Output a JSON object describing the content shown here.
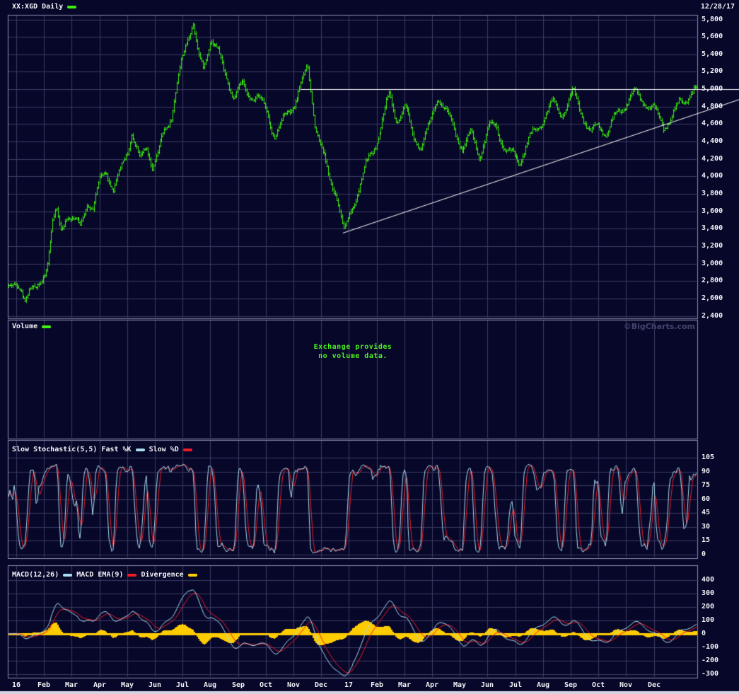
{
  "header": {
    "title": "XX:XGD Daily",
    "date": "12/28/17"
  },
  "watermark": "©BigCharts.com",
  "colors": {
    "background": "#07072a",
    "grid": "#3b3b64",
    "border": "#8b8bac",
    "text": "#f2f2f6",
    "price_green": "#3cf00c",
    "fast_k_blue": "#a8dcec",
    "slow_d_red": "#ee1c24",
    "macd_blue": "#a8dcec",
    "macd_ema_red": "#ee1c24",
    "divergence_yellow": "#ffcc00",
    "trendline_white": "#ffffff",
    "message_green": "#4ef01e",
    "watermark_gray": "#44446c",
    "bottom_strip": "#d4d4e4"
  },
  "panels": {
    "price": {
      "y_ticks": [
        "5,800",
        "5,600",
        "5,400",
        "5,200",
        "5,000",
        "4,800",
        "4,600",
        "4,400",
        "4,200",
        "4,000",
        "3,800",
        "3,600",
        "3,400",
        "3,200",
        "3,000",
        "2,800",
        "2,600",
        "2,400"
      ]
    },
    "volume": {
      "label": "Volume",
      "message_line1": "Exchange provides",
      "message_line2": "no volume data."
    },
    "stochastic": {
      "label": "Slow Stochastic(5,5)",
      "legend": [
        {
          "name": "Fast %K",
          "color": "fast_k_blue"
        },
        {
          "name": "Slow %D",
          "color": "slow_d_red"
        }
      ],
      "y_ticks": [
        "105",
        "90",
        "75",
        "60",
        "45",
        "30",
        "15",
        "0"
      ]
    },
    "macd": {
      "legend": [
        {
          "name": "MACD(12,26)",
          "color": "macd_blue"
        },
        {
          "name": "MACD EMA(9)",
          "color": "macd_ema_red"
        },
        {
          "name": "Divergence",
          "color": "divergence_yellow"
        }
      ],
      "y_ticks": [
        "400",
        "300",
        "200",
        "100",
        "0",
        "-100",
        "-200",
        "-300"
      ]
    }
  },
  "x_axis": {
    "months": [
      "16",
      "Feb",
      "Mar",
      "Apr",
      "May",
      "Jun",
      "Jul",
      "Aug",
      "Sep",
      "Oct",
      "Nov",
      "Dec",
      "17",
      "Feb",
      "Mar",
      "Apr",
      "May",
      "Jun",
      "Jul",
      "Aug",
      "Sep",
      "Oct",
      "Nov",
      "Dec"
    ]
  },
  "chart_data": [
    {
      "type": "ohlc",
      "title": "XX:XGD Daily price",
      "last_date": "12/28/17",
      "ylim": [
        2400,
        5800
      ],
      "x_unit": "months since Jan 2016 gridline",
      "anchors": {
        "x": [
          -0.28,
          0.1,
          0.3,
          0.5,
          0.7,
          0.9,
          1.05,
          1.3,
          1.45,
          1.6,
          1.85,
          2.0,
          2.3,
          2.55,
          2.75,
          3.0,
          3.25,
          3.5,
          3.75,
          4.0,
          4.15,
          4.45,
          4.7,
          4.9,
          5.1,
          5.35,
          5.6,
          5.8,
          6.0,
          6.38,
          6.6,
          6.75,
          7.0,
          7.25,
          7.5,
          7.8,
          8.1,
          8.4,
          8.7,
          9.0,
          9.3,
          9.6,
          9.9,
          10.15,
          10.5,
          10.75,
          11.0,
          11.3,
          11.55,
          11.82,
          12.05,
          12.3,
          12.6,
          12.85,
          13.1,
          13.45,
          13.7,
          14.0,
          14.3,
          14.6,
          14.9,
          15.2,
          15.5,
          15.8,
          16.1,
          16.4,
          16.7,
          17.0,
          17.3,
          17.6,
          17.9,
          18.15,
          18.45,
          18.75,
          19.05,
          19.35,
          19.65,
          20.1,
          20.4,
          20.7,
          21.0,
          21.3,
          21.6,
          22.0,
          22.3,
          22.6,
          23.0,
          23.35,
          23.65,
          23.9,
          24.2,
          24.54
        ],
        "price": [
          2760,
          2700,
          2630,
          2760,
          2720,
          2800,
          2950,
          3480,
          3580,
          3350,
          3560,
          3500,
          3370,
          3700,
          3620,
          3960,
          4100,
          3880,
          4090,
          4330,
          4520,
          4170,
          4310,
          4080,
          4220,
          4500,
          4720,
          5100,
          5400,
          5780,
          5360,
          5230,
          5580,
          5480,
          5150,
          4900,
          5030,
          4900,
          4980,
          4750,
          4520,
          4660,
          4760,
          4960,
          5220,
          4620,
          4300,
          3950,
          3820,
          3380,
          3620,
          3850,
          4130,
          4280,
          4500,
          4900,
          4620,
          4780,
          4480,
          4390,
          4620,
          4970,
          4750,
          4500,
          4290,
          4460,
          4210,
          4550,
          4610,
          4350,
          4270,
          4190,
          4410,
          4510,
          4660,
          4810,
          4710,
          4980,
          4760,
          4530,
          4610,
          4500,
          4660,
          4810,
          4930,
          4860,
          4790,
          4620,
          4710,
          4860,
          4910,
          4970
        ]
      },
      "trendlines": [
        {
          "kind": "horizontal-resistance",
          "price": 5000,
          "x_start": 10.25,
          "x_end": 26.3
        },
        {
          "kind": "ascending-support",
          "x_start": 11.78,
          "price_start": 3350,
          "x_end": 26.1,
          "price_end": 4880
        }
      ]
    },
    {
      "type": "line",
      "title": "Slow Stochastic(5,5)",
      "series_names": [
        "Fast %K",
        "Slow %D"
      ],
      "ylim": [
        0,
        105
      ],
      "params": {
        "k_period": 5,
        "d_period": 5
      },
      "derived_from": "price series above"
    },
    {
      "type": "line+area",
      "title": "MACD(12,26) with MACD EMA(9) and Divergence histogram",
      "series_names": [
        "MACD(12,26)",
        "MACD EMA(9)",
        "Divergence"
      ],
      "ylim": [
        -300,
        400
      ],
      "params": {
        "fast": 12,
        "slow": 26,
        "signal": 9
      },
      "derived_from": "price series above"
    }
  ]
}
